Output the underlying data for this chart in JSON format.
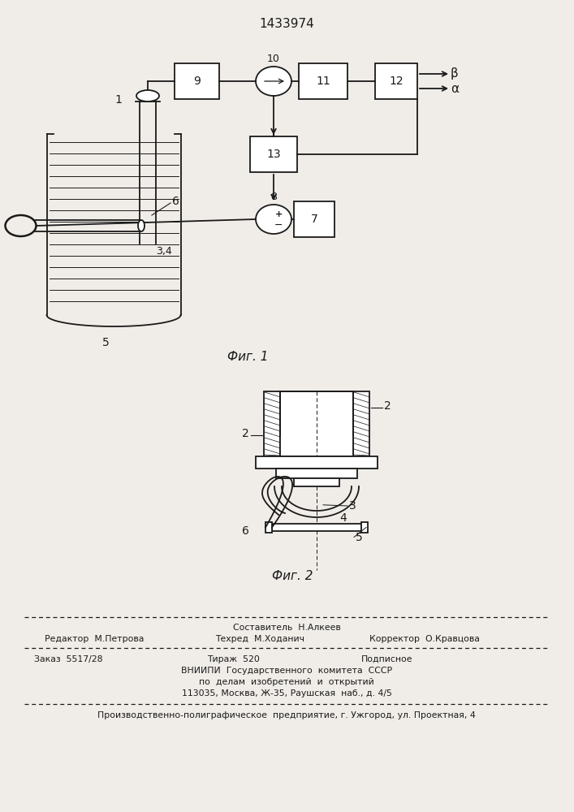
{
  "patent_number": "1433974",
  "bg_color": "#f0ede8",
  "line_color": "#1a1a1a",
  "fig1_caption": "Фиг. 1",
  "fig2_caption": "Фиг. 2",
  "footer": {
    "line1_center": "Составитель  Н.Алкеев",
    "line2_left": "Редактор  М.Петрова",
    "line2_center": "Техред  М.Ходанич",
    "line2_right": "Корректор  О.Кравцова",
    "line3_left": "Заказ  5517/28",
    "line3_center": "Тираж  520",
    "line3_right": "Подписное",
    "line4_center": "ВНИИПИ  Государственного  комитета  СССР",
    "line5_center": "по  делам  изобретений  и  открытий",
    "line6_center": "113035, Москва, Ж-35, Раушская  наб., д. 4/5",
    "line7": "Производственно-полиграфическое  предприятие, г. Ужгород, ул. Проектная, 4"
  }
}
